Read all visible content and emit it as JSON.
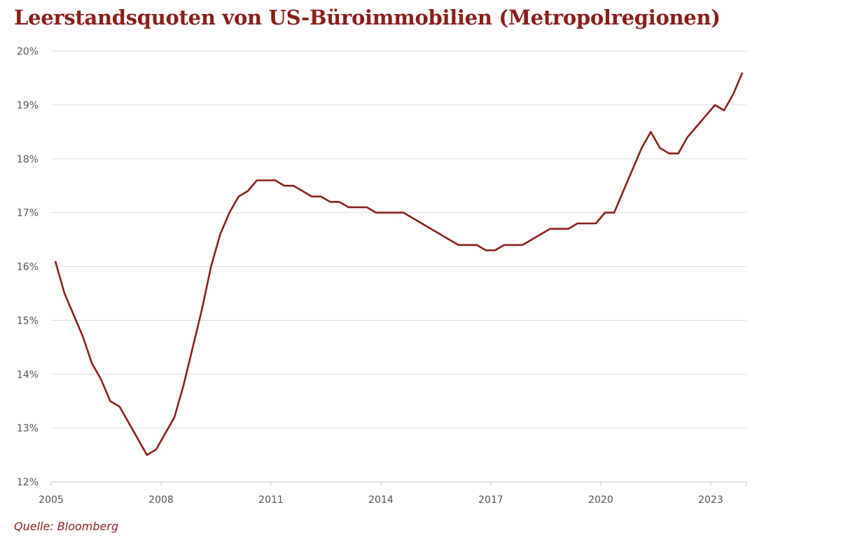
{
  "chart_data": {
    "type": "line",
    "title": "Leerstandsquoten von US-Büroimmobilien (Metropolregionen)",
    "source": "Quelle: Bloomberg",
    "xlabel": "",
    "ylabel": "",
    "ylim": [
      12,
      20
    ],
    "xlim": [
      2005,
      2024.2
    ],
    "x_ticks": [
      "2005",
      "2008",
      "2011",
      "2014",
      "2017",
      "2020",
      "2023"
    ],
    "y_ticks": [
      "12%",
      "13%",
      "14%",
      "15%",
      "16%",
      "17%",
      "18%",
      "19%",
      "20%"
    ],
    "grid": "horizontal",
    "line_color": "#8a1f1a",
    "x_start_quarter": "2005Q1",
    "x_step": "quarter",
    "values": [
      16.1,
      15.5,
      15.1,
      14.7,
      14.2,
      13.9,
      13.5,
      13.4,
      13.1,
      12.8,
      12.5,
      12.6,
      12.9,
      13.2,
      13.8,
      14.5,
      15.2,
      16.0,
      16.6,
      17.0,
      17.3,
      17.4,
      17.6,
      17.6,
      17.6,
      17.5,
      17.5,
      17.4,
      17.3,
      17.3,
      17.2,
      17.2,
      17.1,
      17.1,
      17.1,
      17.0,
      17.0,
      17.0,
      17.0,
      16.9,
      16.8,
      16.7,
      16.6,
      16.5,
      16.4,
      16.4,
      16.4,
      16.3,
      16.3,
      16.4,
      16.4,
      16.4,
      16.5,
      16.6,
      16.7,
      16.7,
      16.7,
      16.8,
      16.8,
      16.8,
      17.0,
      17.0,
      17.4,
      17.8,
      18.2,
      18.5,
      18.2,
      18.1,
      18.1,
      18.4,
      18.6,
      18.8,
      19.0,
      18.9,
      19.2,
      19.6
    ]
  }
}
